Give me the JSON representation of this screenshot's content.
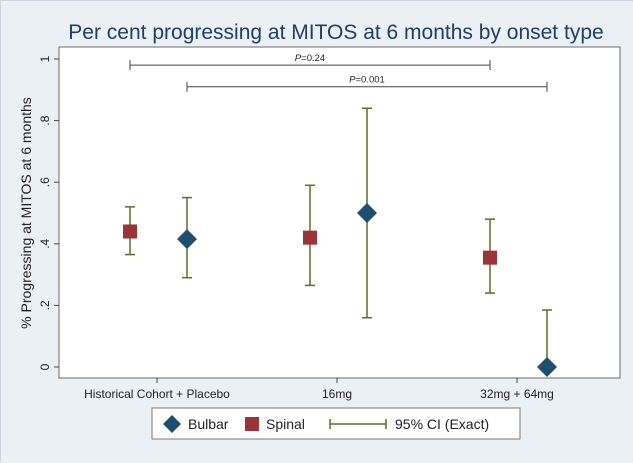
{
  "chart_data": {
    "type": "scatter",
    "title": "Per cent progressing at MITOS at 6 months by onset type",
    "xlabel": "",
    "ylabel": "% Progressing at MITOS at 6 months",
    "ylim": [
      0,
      1
    ],
    "yticks": [
      0,
      0.2,
      0.4,
      0.6,
      0.8,
      1
    ],
    "ytick_labels": [
      "0",
      ".2",
      ".4",
      ".6",
      ".8",
      "1"
    ],
    "grid": false,
    "categories": [
      "Historical Cohort + Placebo",
      "16mg",
      "32mg + 64mg"
    ],
    "series": [
      {
        "name": "Spinal",
        "marker": "square",
        "color": "#9b3438",
        "values": [
          0.44,
          0.42,
          0.355
        ],
        "ci_low": [
          0.365,
          0.265,
          0.24
        ],
        "ci_high": [
          0.52,
          0.59,
          0.48
        ]
      },
      {
        "name": "Bulbar",
        "marker": "diamond",
        "color": "#1f4e6e",
        "values": [
          0.415,
          0.5,
          0.0
        ],
        "ci_low": [
          0.29,
          0.16,
          0.0
        ],
        "ci_high": [
          0.55,
          0.84,
          0.185
        ]
      }
    ],
    "ci_label": "95% CI (Exact)",
    "ci_color": "#5e6e28",
    "annotations": [
      {
        "text": "P=0.24",
        "from": "Spinal: Historical Cohort + Placebo",
        "to": "Spinal: 32mg + 64mg",
        "level": 0.98
      },
      {
        "text": "P=0.001",
        "from": "Bulbar: Historical Cohort + Placebo",
        "to": "Bulbar: 32mg + 64mg",
        "level": 0.91
      }
    ],
    "legend": {
      "position": "bottom",
      "entries": [
        "Bulbar",
        "Spinal",
        "95% CI (Exact)"
      ]
    }
  }
}
